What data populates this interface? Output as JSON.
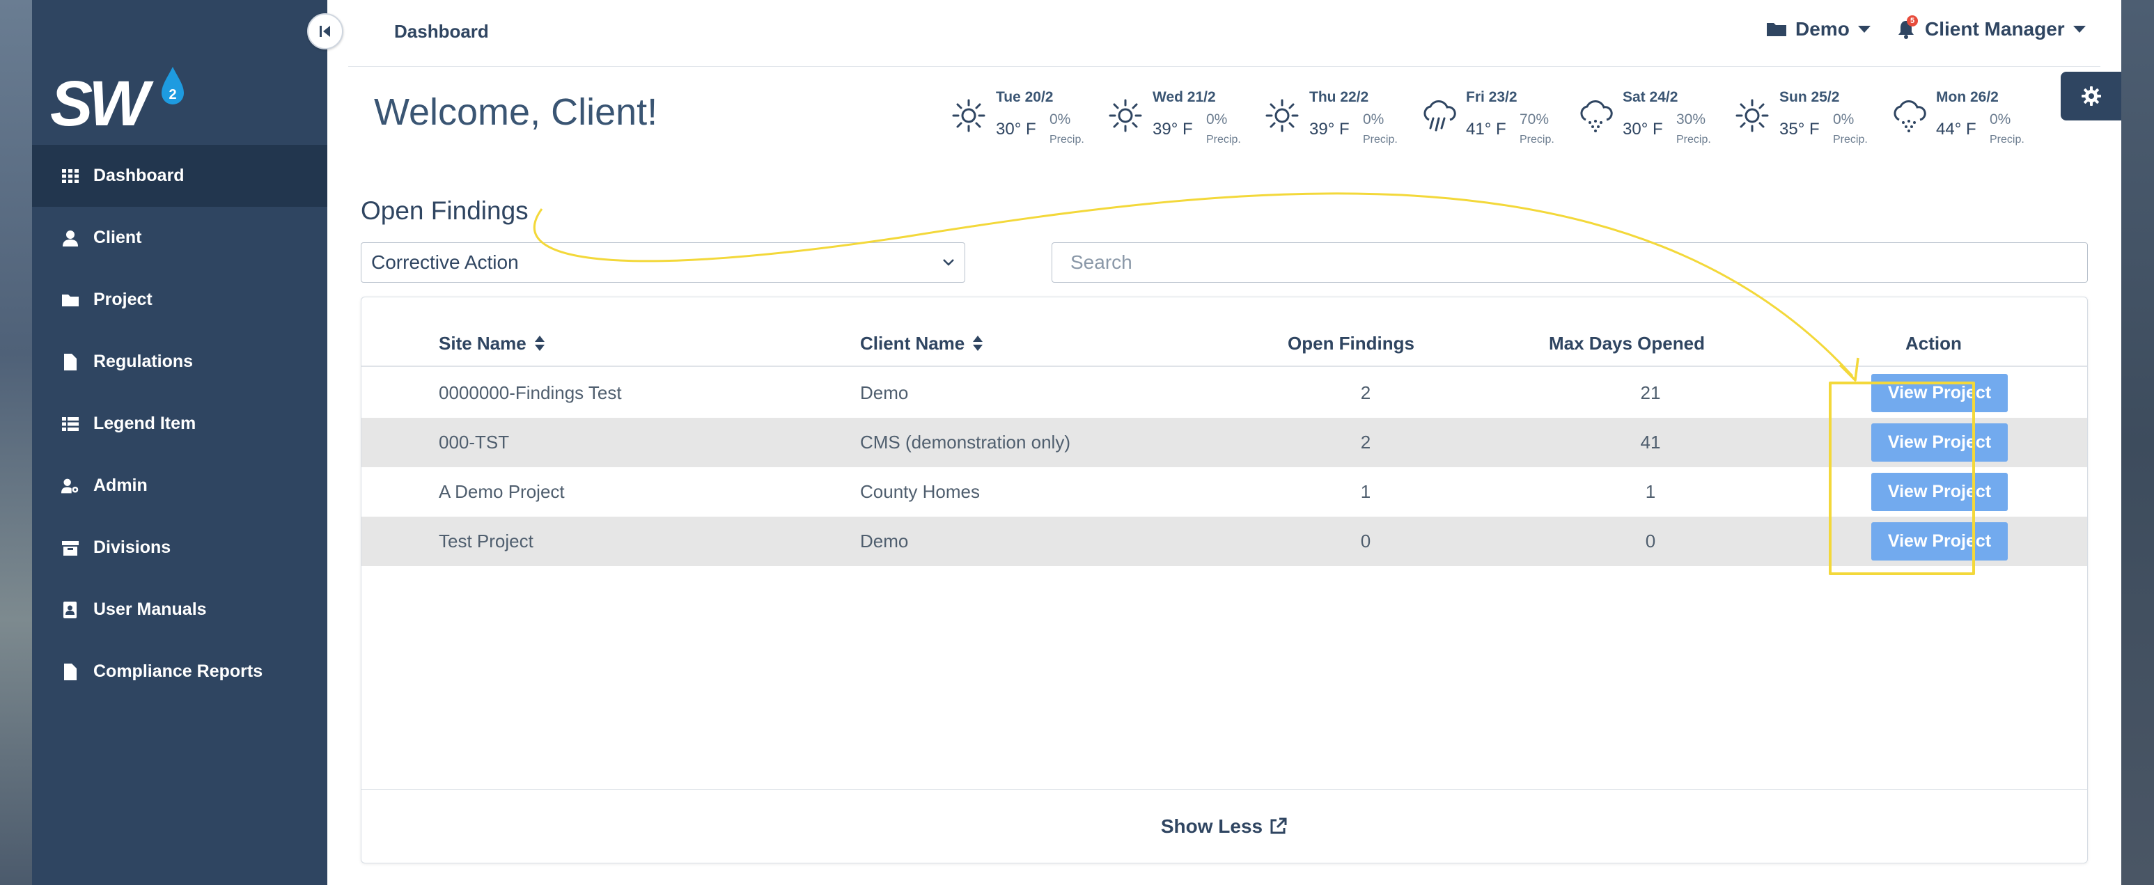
{
  "app": {
    "logo_text": "SW",
    "logo_badge": "2"
  },
  "sidebar": {
    "items": [
      {
        "label": "Dashboard",
        "icon": "grid-icon",
        "active": true
      },
      {
        "label": "Client",
        "icon": "user-icon",
        "active": false
      },
      {
        "label": "Project",
        "icon": "folder-icon",
        "active": false
      },
      {
        "label": "Regulations",
        "icon": "file-icon",
        "active": false
      },
      {
        "label": "Legend Item",
        "icon": "list-icon",
        "active": false
      },
      {
        "label": "Admin",
        "icon": "user-gear-icon",
        "active": false
      },
      {
        "label": "Divisions",
        "icon": "archive-icon",
        "active": false
      },
      {
        "label": "User Manuals",
        "icon": "address-book-icon",
        "active": false
      },
      {
        "label": "Compliance Reports",
        "icon": "file-icon",
        "active": false
      }
    ]
  },
  "header": {
    "breadcrumb": "Dashboard",
    "project_dropdown": "Demo",
    "user_dropdown": "Client Manager",
    "notification_count": "5"
  },
  "welcome": "Welcome, Client!",
  "weather": [
    {
      "date": "Tue 20/2",
      "temp": "30° F",
      "precip_pct": "0%",
      "precip_label": "Precip.",
      "icon": "sun-icon"
    },
    {
      "date": "Wed 21/2",
      "temp": "39° F",
      "precip_pct": "0%",
      "precip_label": "Precip.",
      "icon": "sun-icon"
    },
    {
      "date": "Thu 22/2",
      "temp": "39° F",
      "precip_pct": "0%",
      "precip_label": "Precip.",
      "icon": "sun-icon"
    },
    {
      "date": "Fri 23/2",
      "temp": "41° F",
      "precip_pct": "70%",
      "precip_label": "Precip.",
      "icon": "rain-icon"
    },
    {
      "date": "Sat 24/2",
      "temp": "30° F",
      "precip_pct": "30%",
      "precip_label": "Precip.",
      "icon": "snow-cloud-icon"
    },
    {
      "date": "Sun 25/2",
      "temp": "35° F",
      "precip_pct": "0%",
      "precip_label": "Precip.",
      "icon": "sun-icon"
    },
    {
      "date": "Mon 26/2",
      "temp": "44° F",
      "precip_pct": "0%",
      "precip_label": "Precip.",
      "icon": "snow-cloud-icon"
    }
  ],
  "findings": {
    "title": "Open Findings",
    "filter_value": "Corrective Action",
    "search_placeholder": "Search",
    "columns": {
      "site_name": "Site Name",
      "client_name": "Client Name",
      "open_findings": "Open Findings",
      "max_days": "Max Days Opened",
      "action": "Action"
    },
    "rows": [
      {
        "site": "0000000-Findings Test",
        "client": "Demo",
        "open": "2",
        "days": "21",
        "action": "View Project"
      },
      {
        "site": "000-TST",
        "client": "CMS (demonstration only)",
        "open": "2",
        "days": "41",
        "action": "View Project"
      },
      {
        "site": "A Demo Project",
        "client": "County Homes",
        "open": "1",
        "days": "1",
        "action": "View Project"
      },
      {
        "site": "Test Project",
        "client": "Demo",
        "open": "0",
        "days": "0",
        "action": "View Project"
      }
    ],
    "show_less": "Show Less"
  },
  "colors": {
    "sidebar": "#2f4561",
    "sidebar_active": "#22364e",
    "button": "#72aaee",
    "highlight": "#f3d83a",
    "notification": "#e74c3c"
  }
}
